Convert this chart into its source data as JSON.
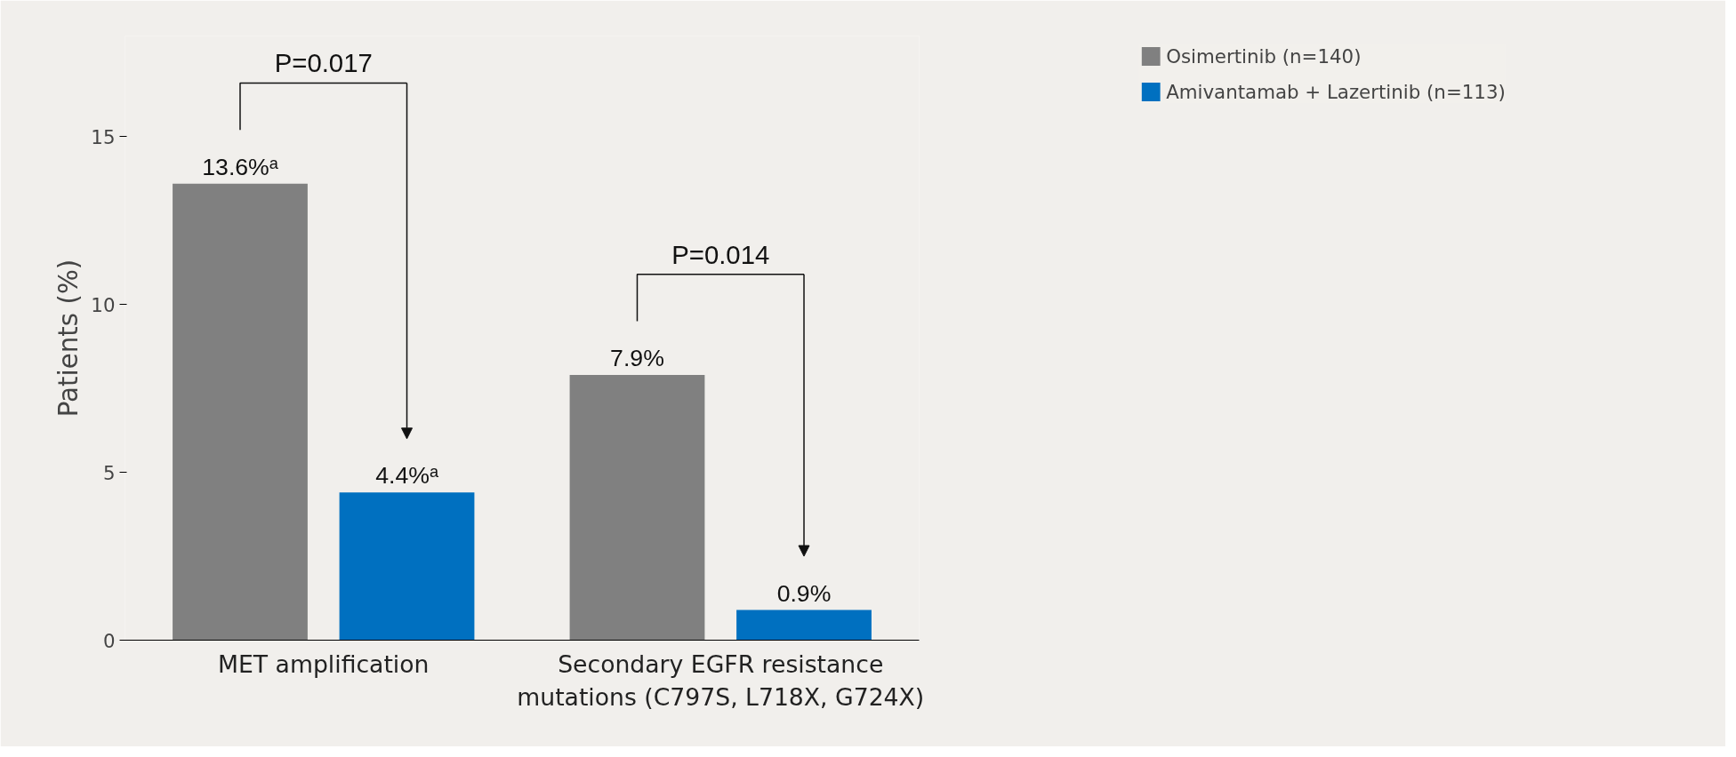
{
  "chart_data": {
    "type": "bar",
    "ylabel": "Patients (%)",
    "categories": [
      "MET amplification",
      "Secondary EGFR resistance mutations (C797S, L718X, G724X)"
    ],
    "series": [
      {
        "name": "Osimertinib (n=140)",
        "color": "#808080",
        "values": [
          13.6,
          7.9
        ],
        "value_labels": [
          "13.6%ᵃ",
          "7.9%"
        ]
      },
      {
        "name": "Amivantamab + Lazertinib (n=113)",
        "color": "#0070c0",
        "values": [
          4.4,
          0.9
        ],
        "value_labels": [
          "4.4%ᵃ",
          "0.9%"
        ]
      }
    ],
    "ylim": [
      0,
      18
    ],
    "yticks": [
      0,
      5,
      10,
      15
    ],
    "grid": false,
    "legend": "top right",
    "annotations": [
      "P=0.017",
      "P=0.014"
    ]
  }
}
